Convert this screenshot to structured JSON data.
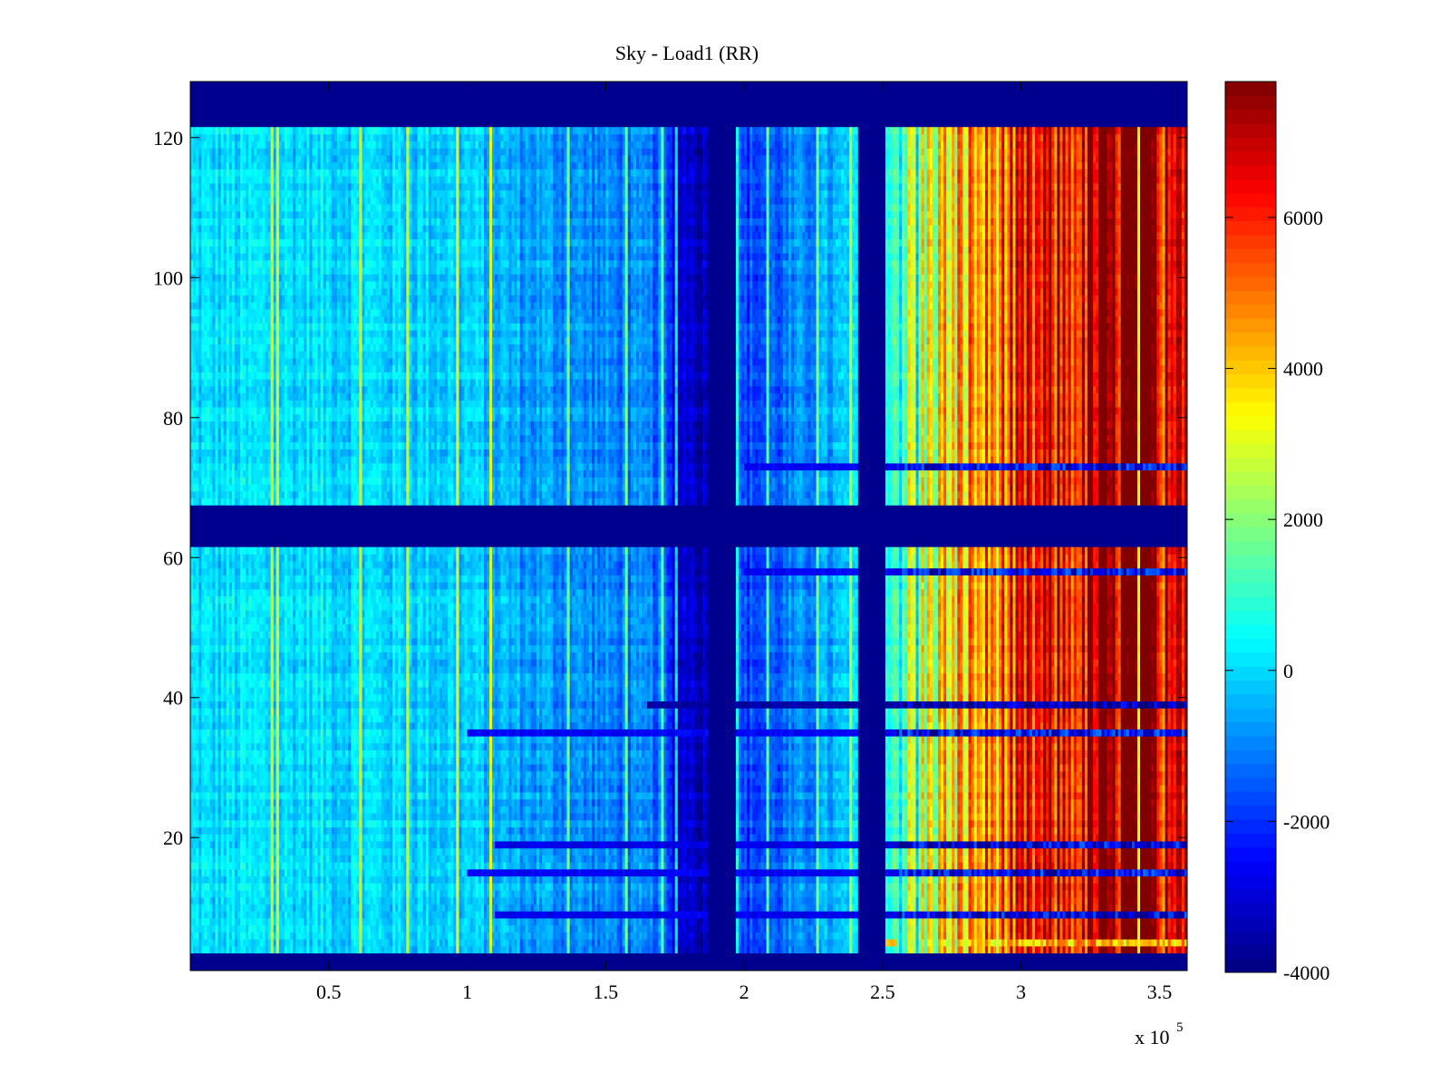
{
  "chart_data": {
    "type": "heatmap",
    "title": "Sky - Load1 (RR)",
    "xlabel": "",
    "ylabel": "",
    "x_multiplier_label": "x 10",
    "x_multiplier_exponent": "5",
    "xlim": [
      0,
      3.6
    ],
    "ylim": [
      1,
      128
    ],
    "x_ticks": [
      {
        "value": 0.5,
        "label": "0.5"
      },
      {
        "value": 1,
        "label": "1"
      },
      {
        "value": 1.5,
        "label": "1.5"
      },
      {
        "value": 2,
        "label": "2"
      },
      {
        "value": 2.5,
        "label": "2.5"
      },
      {
        "value": 3,
        "label": "3"
      },
      {
        "value": 3.5,
        "label": "3.5"
      }
    ],
    "y_ticks": [
      {
        "value": 20,
        "label": "20"
      },
      {
        "value": 40,
        "label": "40"
      },
      {
        "value": 60,
        "label": "60"
      },
      {
        "value": 80,
        "label": "80"
      },
      {
        "value": 100,
        "label": "100"
      },
      {
        "value": 120,
        "label": "120"
      }
    ],
    "colorbar": {
      "colormap": "jet",
      "clim": [
        -4000,
        7800
      ],
      "ticks": [
        {
          "value": -4000,
          "label": "-4000"
        },
        {
          "value": -2000,
          "label": "-2000"
        },
        {
          "value": 0,
          "label": "0"
        },
        {
          "value": 2000,
          "label": "2000"
        },
        {
          "value": 4000,
          "label": "4000"
        },
        {
          "value": 6000,
          "label": "6000"
        }
      ]
    },
    "masked_value": -4000,
    "masked_row_bands": [
      [
        1,
        3
      ],
      [
        61.5,
        67.5
      ],
      [
        121.5,
        128
      ]
    ],
    "masked_col_bands": [
      [
        1.87,
        1.97
      ],
      [
        2.41,
        2.51
      ]
    ],
    "column_profile": [
      {
        "x": 0.0,
        "value": 0
      },
      {
        "x": 0.5,
        "value": 100
      },
      {
        "x": 1.0,
        "value": -100
      },
      {
        "x": 1.2,
        "value": -600
      },
      {
        "x": 1.5,
        "value": -1000
      },
      {
        "x": 1.7,
        "value": -1200
      },
      {
        "x": 1.75,
        "value": -2800
      },
      {
        "x": 1.87,
        "value": -3300
      },
      {
        "x": 1.97,
        "value": -1800
      },
      {
        "x": 2.1,
        "value": -1500
      },
      {
        "x": 2.25,
        "value": -800
      },
      {
        "x": 2.4,
        "value": -200
      },
      {
        "x": 2.51,
        "value": 1000
      },
      {
        "x": 2.7,
        "value": 3500
      },
      {
        "x": 3.0,
        "value": 5500
      },
      {
        "x": 3.3,
        "value": 7000
      },
      {
        "x": 3.6,
        "value": 7800
      }
    ],
    "row_anomalies": [
      {
        "row": 39,
        "value": -3600,
        "x_from": 1.65
      },
      {
        "row": 35,
        "value": -2600,
        "x_from": 1.0
      },
      {
        "row": 19,
        "value": -2800,
        "x_from": 1.1
      },
      {
        "row": 15,
        "value": -2600,
        "x_from": 1.0
      },
      {
        "row": 9,
        "value": -2700,
        "x_from": 1.1
      },
      {
        "row": 73,
        "value": -2600,
        "x_from": 2.0
      },
      {
        "row": 58,
        "value": -2600,
        "x_from": 2.0
      },
      {
        "row": 5,
        "value": 4200,
        "x_from": 2.51
      }
    ]
  }
}
